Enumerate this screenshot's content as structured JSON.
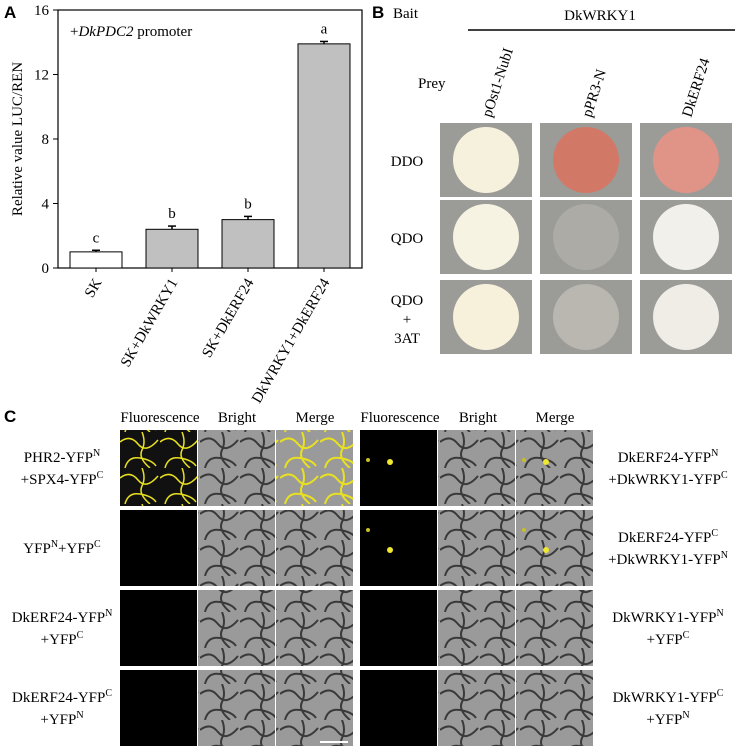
{
  "chart_data": {
    "type": "bar",
    "panel": "A",
    "ylabel": "Relative value LUC/REN",
    "inset": [
      "+",
      "DkPDC2",
      " promoter"
    ],
    "categories": [
      "SK",
      "SK+DkWRKY1",
      "SK+DkERF24",
      "DkWRKY1+DkERF24"
    ],
    "values": [
      1.0,
      2.4,
      3.0,
      13.9
    ],
    "errors": [
      0.1,
      0.2,
      0.2,
      0.15
    ],
    "annotations": [
      "c",
      "b",
      "b",
      "a"
    ],
    "colors": [
      "#ffffff",
      "#c0c0c0",
      "#c0c0c0",
      "#c0c0c0"
    ],
    "ylim": [
      0,
      16
    ],
    "yticks": [
      0,
      4,
      8,
      12,
      16
    ]
  },
  "panel_b": {
    "panel": "B",
    "bait": "Bait",
    "bait_name": "DkWRKY1",
    "prey": "Prey",
    "columns": [
      "pOst1-NubI",
      "pPR3-N",
      "DkERF24"
    ],
    "rows": [
      [
        "DDO"
      ],
      [
        "QDO"
      ],
      [
        "QDO",
        "+",
        "3AT"
      ]
    ]
  },
  "panel_c": {
    "panel": "C",
    "headers": [
      "Fluorescence",
      "Bright",
      "Merge",
      "Fluorescence",
      "Bright",
      "Merge"
    ],
    "left": [
      [
        [
          "PHR2-YFP",
          "N"
        ],
        [
          "+SPX4-YFP",
          "C"
        ]
      ],
      [
        [
          "YFP",
          "N",
          "+YFP",
          "C"
        ]
      ],
      [
        [
          "DkERF24-YFP",
          "N"
        ],
        [
          "+YFP",
          "C"
        ]
      ],
      [
        [
          "DkERF24-YFP",
          "C"
        ],
        [
          "+YFP",
          "N"
        ]
      ]
    ],
    "right": [
      [
        [
          "DkERF24-YFP",
          "N"
        ],
        [
          "+DkWRKY1-YFP",
          "C"
        ]
      ],
      [
        [
          "DkERF24-YFP",
          "C"
        ],
        [
          "+DkWRKY1-YFP",
          "N"
        ]
      ],
      [
        [
          "DkWRKY1-YFP",
          "N"
        ],
        [
          "+YFP",
          "C"
        ]
      ],
      [
        [
          "DkWRKY1-YFP",
          "C"
        ],
        [
          "+YFP",
          "N"
        ]
      ]
    ]
  }
}
